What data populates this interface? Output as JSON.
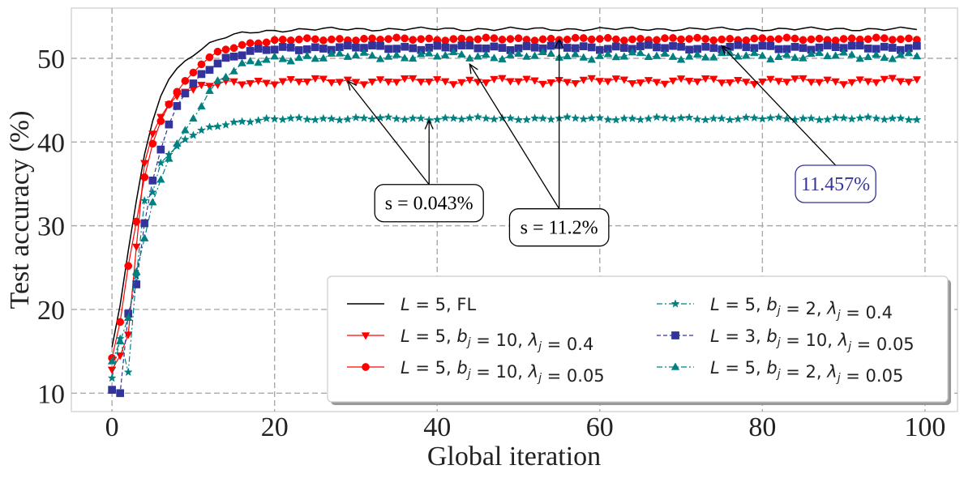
{
  "chart_data": {
    "type": "line",
    "xlabel": "Global iteration",
    "ylabel": "Test accuracy (%)",
    "xlim": [
      -5,
      104
    ],
    "ylim": [
      7.8,
      56
    ],
    "xticks": [
      0,
      20,
      40,
      60,
      80,
      100
    ],
    "yticks": [
      10,
      20,
      30,
      40,
      50
    ],
    "grid": true,
    "legend_position": "bottom-right",
    "legend_columns": 2,
    "series": [
      {
        "key": "fl",
        "name": "L = 5, FL",
        "legend_parts": [
          [
            "it",
            "L"
          ],
          [
            "rm",
            " = 5, FL"
          ]
        ],
        "color": "#000000",
        "marker": "none",
        "dash": "solid",
        "warmup": [
          15.5,
          20.5,
          27.0,
          33.0,
          38.5,
          42.5,
          45.5,
          47.5,
          48.8,
          49.7,
          50.3
        ],
        "plateau": 53.5,
        "amp": 0.15
      },
      {
        "key": "l5_b10_l04",
        "name": "L = 5, b_j = 10, λ_j = 0.4",
        "legend_parts": [
          [
            "it",
            "L"
          ],
          [
            "rm",
            " = 5, "
          ],
          [
            "it",
            "b"
          ],
          [
            "sub",
            "j"
          ],
          [
            "rm",
            " = 10, "
          ],
          [
            "it",
            "λ"
          ],
          [
            "sub",
            "j"
          ],
          [
            "rm",
            " = 0.4"
          ]
        ],
        "color": "#ff0000",
        "marker": "triangle-down",
        "dash": "solid",
        "warmup": [
          12.8,
          14.5,
          17.0,
          27.5,
          37.5,
          41.0,
          43.0,
          44.5,
          45.5,
          46.0,
          46.3
        ],
        "plateau": 47.3,
        "amp": 0.25
      },
      {
        "key": "l5_b10_l005",
        "name": "L = 5, b_j = 10, λ_j = 0.05",
        "legend_parts": [
          [
            "it",
            "L"
          ],
          [
            "rm",
            " = 5, "
          ],
          [
            "it",
            "b"
          ],
          [
            "sub",
            "j"
          ],
          [
            "rm",
            " = 10, "
          ],
          [
            "it",
            "λ"
          ],
          [
            "sub",
            "j"
          ],
          [
            "rm",
            " = 0.05"
          ]
        ],
        "color": "#ff0000",
        "marker": "circle",
        "dash": "solid",
        "warmup": [
          14.2,
          18.5,
          25.2,
          30.5,
          35.8,
          39.8,
          42.5,
          44.5,
          46.0,
          47.3,
          48.3
        ],
        "plateau": 52.3,
        "amp": 0.12
      },
      {
        "key": "l5_b2_l04",
        "name": "L = 5, b_j = 2, λ_j = 0.4",
        "legend_parts": [
          [
            "it",
            "L"
          ],
          [
            "rm",
            " = 5, "
          ],
          [
            "it",
            "b"
          ],
          [
            "sub",
            "j"
          ],
          [
            "rm",
            " = 2, "
          ],
          [
            "it",
            "λ"
          ],
          [
            "sub",
            "j"
          ],
          [
            "rm",
            " = 0.4"
          ]
        ],
        "color": "#008080",
        "marker": "star",
        "dash": "dashdot",
        "warmup": [
          11.8,
          16.5,
          12.5,
          24.0,
          33.0,
          34.0,
          37.5,
          38.5,
          39.5,
          40.3,
          40.8
        ],
        "plateau": 42.8,
        "amp": 0.12
      },
      {
        "key": "l3_b10_l005",
        "name": "L = 3, b_j = 10, λ_j = 0.05",
        "legend_parts": [
          [
            "it",
            "L"
          ],
          [
            "rm",
            " = 3, "
          ],
          [
            "it",
            "b"
          ],
          [
            "sub",
            "j"
          ],
          [
            "rm",
            " = 10, "
          ],
          [
            "it",
            "λ"
          ],
          [
            "sub",
            "j"
          ],
          [
            "rm",
            " = 0.05"
          ]
        ],
        "color": "#333399",
        "marker": "square",
        "dash": "dashed",
        "warmup": [
          10.4,
          10.0,
          19.5,
          23.0,
          30.3,
          35.4,
          39.1,
          42.1,
          44.3,
          45.8,
          47.0
        ],
        "plateau": 51.3,
        "amp": 0.2
      },
      {
        "key": "l5_b2_l005",
        "name": "L = 5, b_j = 2, λ_j = 0.05",
        "legend_parts": [
          [
            "it",
            "L"
          ],
          [
            "rm",
            " = 5, "
          ],
          [
            "it",
            "b"
          ],
          [
            "sub",
            "j"
          ],
          [
            "rm",
            " = 2, "
          ],
          [
            "it",
            "λ"
          ],
          [
            "sub",
            "j"
          ],
          [
            "rm",
            " = 0.05"
          ]
        ],
        "color": "#008080",
        "marker": "triangle-up",
        "dash": "dashdot",
        "warmup": [
          13.8,
          16.2,
          19.0,
          24.5,
          28.5,
          32.8,
          35.5,
          38.0,
          39.8,
          41.4,
          42.8
        ],
        "plateau": 50.3,
        "amp": 0.3
      }
    ],
    "annotations": [
      {
        "text": "s = 0.043%",
        "color": "#000000",
        "targets": [
          [
            39,
            42.6
          ],
          [
            29,
            47.3
          ]
        ],
        "box_x": 39.0,
        "box_y": 32.7
      },
      {
        "text": "s = 11.2%",
        "color": "#000000",
        "targets": [
          [
            55,
            52.3
          ],
          [
            44,
            49.3
          ]
        ],
        "box_x": 55.0,
        "box_y": 29.8
      },
      {
        "text": "11.457%",
        "color": "#333399",
        "targets": [
          [
            75,
            51.5
          ]
        ],
        "box_x": 89.0,
        "box_y": 35.0
      }
    ]
  }
}
